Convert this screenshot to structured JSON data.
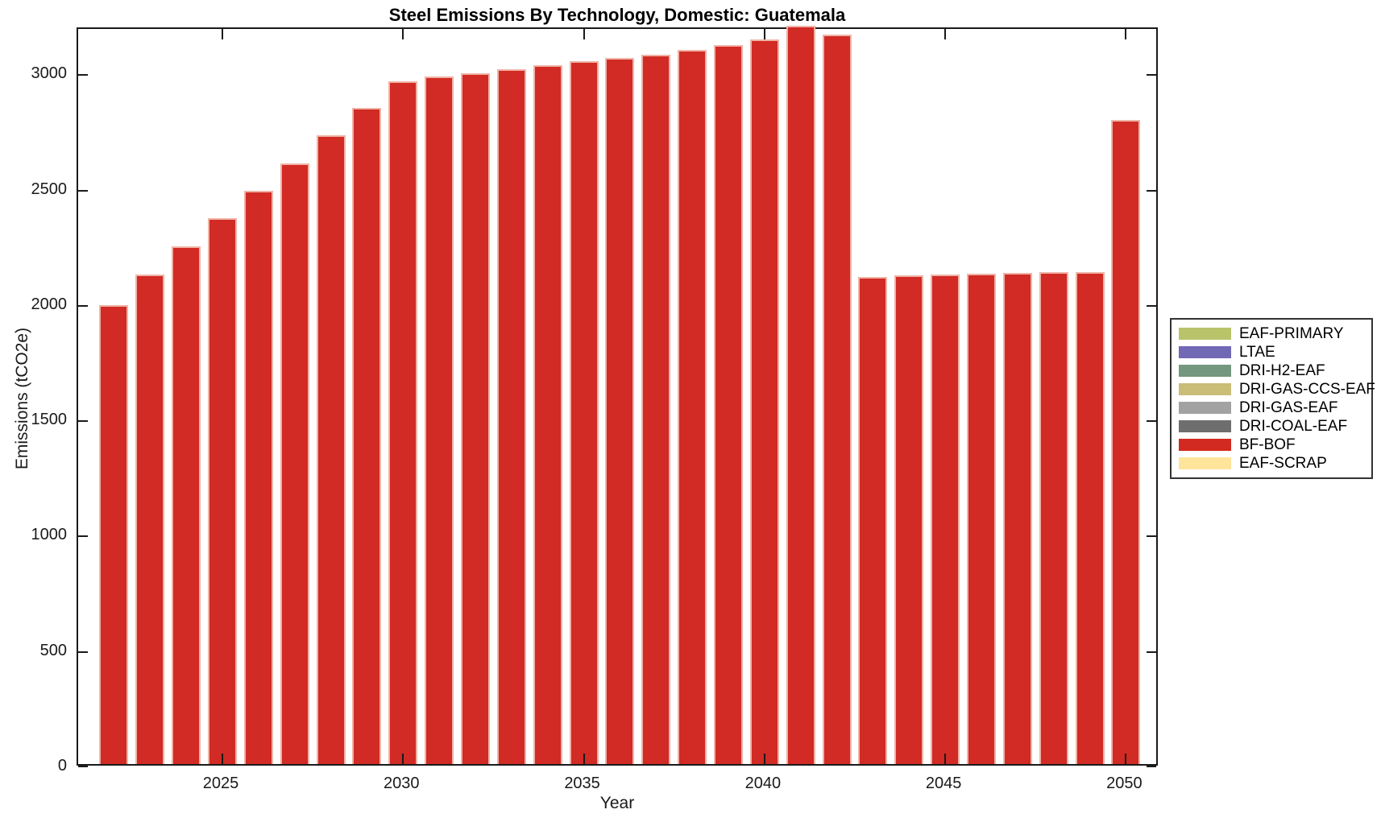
{
  "chart_data": {
    "type": "bar",
    "title": "Steel Emissions By Technology, Domestic: Guatemala",
    "xlabel": "Year",
    "ylabel": "Emissions (tCO2e)",
    "xlim": [
      2021,
      2051
    ],
    "ylim": [
      0,
      3200
    ],
    "xticks": [
      2025,
      2030,
      2035,
      2040,
      2045,
      2050
    ],
    "yticks": [
      0,
      500,
      1000,
      1500,
      2000,
      2500,
      3000
    ],
    "grid": false,
    "legend_position": "outside-right",
    "categories": [
      2022,
      2023,
      2024,
      2025,
      2026,
      2027,
      2028,
      2029,
      2030,
      2031,
      2032,
      2033,
      2034,
      2035,
      2036,
      2037,
      2038,
      2039,
      2040,
      2041,
      2042,
      2043,
      2044,
      2045,
      2046,
      2047,
      2048,
      2049,
      2050
    ],
    "series": [
      {
        "name": "BF-BOF",
        "color": "#d22a24",
        "values": [
          1990,
          2120,
          2245,
          2365,
          2485,
          2605,
          2725,
          2845,
          2960,
          2980,
          2995,
          3010,
          3030,
          3045,
          3060,
          3075,
          3095,
          3115,
          3140,
          3200,
          3160,
          2110,
          2118,
          2122,
          2126,
          2130,
          2132,
          2133,
          2790
        ]
      }
    ],
    "legend": [
      {
        "label": "EAF-PRIMARY",
        "color": "#b9c36a"
      },
      {
        "label": "LTAE",
        "color": "#7168b6"
      },
      {
        "label": "DRI-H2-EAF",
        "color": "#74977f"
      },
      {
        "label": "DRI-GAS-CCS-EAF",
        "color": "#c9bd77"
      },
      {
        "label": "DRI-GAS-EAF",
        "color": "#a2a2a2"
      },
      {
        "label": "DRI-COAL-EAF",
        "color": "#6e6e6e"
      },
      {
        "label": "BF-BOF",
        "color": "#d22920"
      },
      {
        "label": "EAF-SCRAP",
        "color": "#ffe49b"
      }
    ]
  }
}
